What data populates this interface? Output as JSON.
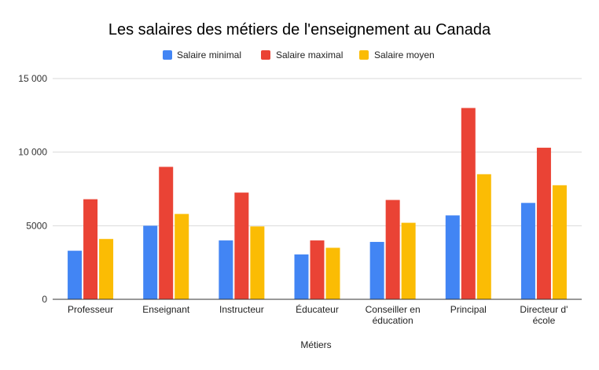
{
  "chart_data": {
    "type": "bar",
    "title": "Les salaires des métiers de l'enseignement au Canada",
    "xlabel": "Métiers",
    "ylabel": "",
    "ylim": [
      0,
      15000
    ],
    "yticks": [
      0,
      5000,
      10000,
      15000
    ],
    "ytick_labels": [
      "0",
      "5000",
      "10 000",
      "15 000"
    ],
    "grid": true,
    "legend_position": "top",
    "categories": [
      [
        "Professeur"
      ],
      [
        "Enseignant"
      ],
      [
        "Instructeur"
      ],
      [
        "Éducateur"
      ],
      [
        "Conseiller en",
        "éducation"
      ],
      [
        "Principal"
      ],
      [
        "Directeur d'",
        "école"
      ]
    ],
    "series": [
      {
        "name": "Salaire minimal",
        "color": "#4285f4",
        "values": [
          3300,
          5000,
          4000,
          3050,
          3900,
          5700,
          6550
        ]
      },
      {
        "name": "Salaire maximal",
        "color": "#ea4335",
        "values": [
          6800,
          9000,
          7250,
          4000,
          6750,
          13000,
          10300
        ]
      },
      {
        "name": "Salaire moyen",
        "color": "#fbbc04",
        "values": [
          4100,
          5800,
          4950,
          3500,
          5200,
          8500,
          7750
        ]
      }
    ]
  }
}
